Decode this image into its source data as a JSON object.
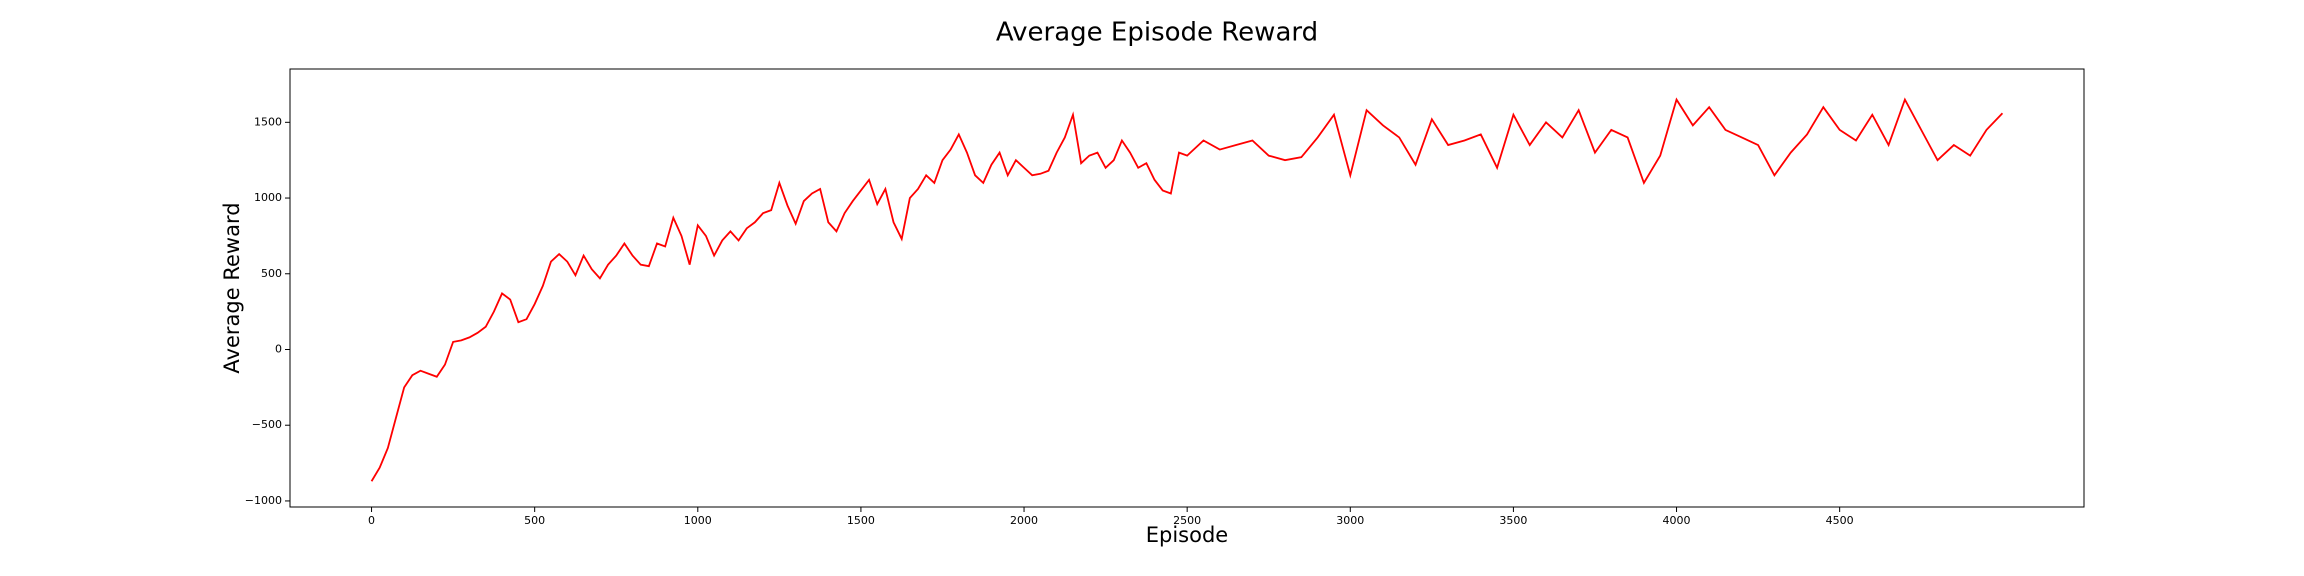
{
  "chart_data": {
    "type": "line",
    "title": "Average Episode Reward",
    "xlabel": "Episode",
    "ylabel": "Average Reward",
    "color": "#ff0000",
    "x": [
      0,
      25,
      50,
      75,
      100,
      125,
      150,
      175,
      200,
      225,
      250,
      275,
      300,
      325,
      350,
      375,
      400,
      425,
      450,
      475,
      500,
      525,
      550,
      575,
      600,
      625,
      650,
      675,
      700,
      725,
      750,
      775,
      800,
      825,
      850,
      875,
      900,
      925,
      950,
      975,
      1000,
      1025,
      1050,
      1075,
      1100,
      1125,
      1150,
      1175,
      1200,
      1225,
      1250,
      1275,
      1300,
      1325,
      1350,
      1375,
      1400,
      1425,
      1450,
      1475,
      1500,
      1525,
      1550,
      1575,
      1600,
      1625,
      1650,
      1675,
      1700,
      1725,
      1750,
      1775,
      1800,
      1825,
      1850,
      1875,
      1900,
      1925,
      1950,
      1975,
      2000,
      2025,
      2050,
      2075,
      2100,
      2125,
      2150,
      2175,
      2200,
      2225,
      2250,
      2275,
      2300,
      2325,
      2350,
      2375,
      2400,
      2425,
      2450,
      2475,
      2500,
      2550,
      2600,
      2650,
      2700,
      2750,
      2800,
      2850,
      2900,
      2950,
      3000,
      3050,
      3100,
      3150,
      3200,
      3250,
      3300,
      3350,
      3400,
      3450,
      3500,
      3550,
      3600,
      3650,
      3700,
      3750,
      3800,
      3850,
      3900,
      3950,
      4000,
      4050,
      4100,
      4150,
      4200,
      4250,
      4300,
      4350,
      4400,
      4450,
      4500,
      4550,
      4600,
      4650,
      4700,
      4750,
      4800,
      4850,
      4900,
      4950,
      4999
    ],
    "values": [
      -870,
      -780,
      -650,
      -450,
      -250,
      -170,
      -140,
      -160,
      -180,
      -100,
      50,
      60,
      80,
      110,
      150,
      250,
      370,
      330,
      180,
      200,
      300,
      420,
      580,
      630,
      580,
      490,
      620,
      530,
      470,
      560,
      620,
      700,
      620,
      560,
      550,
      700,
      680,
      870,
      750,
      560,
      820,
      750,
      620,
      720,
      780,
      720,
      800,
      840,
      900,
      920,
      1100,
      950,
      830,
      980,
      1030,
      1060,
      840,
      780,
      900,
      980,
      1050,
      1120,
      960,
      1060,
      840,
      730,
      1000,
      1060,
      1150,
      1100,
      1250,
      1320,
      1420,
      1300,
      1150,
      1100,
      1220,
      1300,
      1150,
      1250,
      1200,
      1150,
      1160,
      1180,
      1300,
      1400,
      1550,
      1230,
      1280,
      1300,
      1200,
      1250,
      1380,
      1300,
      1200,
      1230,
      1120,
      1050,
      1030,
      1300,
      1280,
      1380,
      1320,
      1350,
      1380,
      1280,
      1250,
      1270,
      1400,
      1550,
      1150,
      1580,
      1480,
      1400,
      1220,
      1520,
      1350,
      1380,
      1420,
      1200,
      1550,
      1350,
      1500,
      1400,
      1580,
      1300,
      1450,
      1400,
      1100,
      1280,
      1650,
      1480,
      1600,
      1450,
      1400,
      1350,
      1150,
      1300,
      1420,
      1600,
      1450,
      1380,
      1550,
      1350,
      1650,
      1450,
      1250,
      1350,
      1280,
      1450,
      1560
    ],
    "xlim": [
      -249.95,
      5248.95
    ],
    "ylim": [
      -1040,
      1852
    ],
    "xticks": [
      0,
      500,
      1000,
      1500,
      2000,
      2500,
      3000,
      3500,
      4000,
      4500
    ],
    "yticks": [
      {
        "value": -1000,
        "label": "−1000"
      },
      {
        "value": -500,
        "label": "−500"
      },
      0,
      500,
      1000,
      1500
    ]
  }
}
